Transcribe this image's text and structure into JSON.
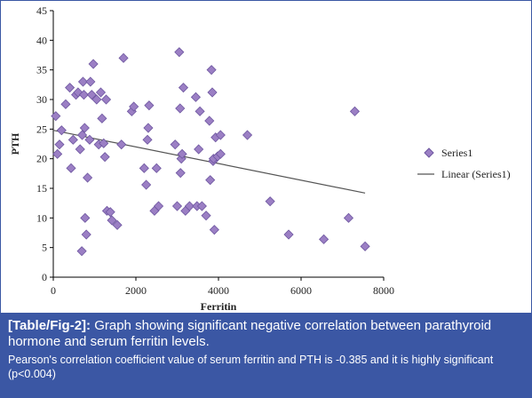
{
  "caption": {
    "tag": "[Table/Fig-2]:",
    "title": " Graph showing significant negative correlation between parathyroid hormone and serum ferritin levels.",
    "body": "Pearson's correlation coefficient value of serum ferritin and PTH is -0.385 and it is highly significant (p<0.004)"
  },
  "chart_data": {
    "type": "scatter",
    "xlabel": "Ferritin",
    "ylabel": "PTH",
    "xlim": [
      0,
      8000
    ],
    "ylim": [
      0,
      45
    ],
    "xticks": [
      0,
      2000,
      4000,
      6000,
      8000
    ],
    "yticks": [
      0,
      5,
      10,
      15,
      20,
      25,
      30,
      35,
      40,
      45
    ],
    "grid": false,
    "legend_position": "right",
    "marker_color": "#9b7fc4",
    "marker_stroke": "#6e57a0",
    "line_color": "#555555",
    "series": [
      {
        "name": "Series1",
        "points": [
          [
            60,
            27.2
          ],
          [
            100,
            20.8
          ],
          [
            150,
            22.4
          ],
          [
            200,
            24.8
          ],
          [
            300,
            29.2
          ],
          [
            400,
            32
          ],
          [
            430,
            18.4
          ],
          [
            480,
            23.2
          ],
          [
            550,
            30.8
          ],
          [
            600,
            31.2
          ],
          [
            650,
            21.6
          ],
          [
            690,
            4.4
          ],
          [
            700,
            24
          ],
          [
            720,
            33
          ],
          [
            740,
            30.8
          ],
          [
            760,
            25.2
          ],
          [
            770,
            10
          ],
          [
            800,
            7.2
          ],
          [
            830,
            16.8
          ],
          [
            880,
            23.2
          ],
          [
            900,
            33
          ],
          [
            930,
            30.8
          ],
          [
            970,
            36
          ],
          [
            1050,
            30
          ],
          [
            1100,
            22.4
          ],
          [
            1150,
            31.2
          ],
          [
            1180,
            26.8
          ],
          [
            1220,
            22.6
          ],
          [
            1250,
            20.3
          ],
          [
            1280,
            30
          ],
          [
            1300,
            11.2
          ],
          [
            1380,
            11
          ],
          [
            1420,
            9.6
          ],
          [
            1550,
            8.8
          ],
          [
            1650,
            22.4
          ],
          [
            1700,
            37
          ],
          [
            1900,
            28
          ],
          [
            1950,
            28.8
          ],
          [
            2200,
            18.4
          ],
          [
            2250,
            15.6
          ],
          [
            2280,
            23.2
          ],
          [
            2300,
            25.2
          ],
          [
            2320,
            29
          ],
          [
            2450,
            11.2
          ],
          [
            2500,
            18.4
          ],
          [
            2550,
            12
          ],
          [
            2950,
            22.4
          ],
          [
            3000,
            12
          ],
          [
            3050,
            38
          ],
          [
            3070,
            28.5
          ],
          [
            3080,
            17.6
          ],
          [
            3100,
            20
          ],
          [
            3120,
            20.8
          ],
          [
            3150,
            32
          ],
          [
            3200,
            11.2
          ],
          [
            3300,
            12
          ],
          [
            3450,
            30.4
          ],
          [
            3480,
            12
          ],
          [
            3520,
            21.6
          ],
          [
            3550,
            28
          ],
          [
            3600,
            12
          ],
          [
            3700,
            10.4
          ],
          [
            3780,
            26.4
          ],
          [
            3800,
            16.4
          ],
          [
            3830,
            35
          ],
          [
            3850,
            31.2
          ],
          [
            3870,
            19.6
          ],
          [
            3880,
            20
          ],
          [
            3900,
            8
          ],
          [
            3930,
            23.6
          ],
          [
            3980,
            20.4
          ],
          [
            4050,
            20.8
          ],
          [
            4050,
            24
          ],
          [
            4700,
            24
          ],
          [
            5250,
            12.8
          ],
          [
            5700,
            7.2
          ],
          [
            6550,
            6.4
          ],
          [
            7150,
            10
          ],
          [
            7300,
            28
          ],
          [
            7550,
            5.2
          ]
        ]
      }
    ],
    "trendline": {
      "name": "Linear (Series1)",
      "x": [
        0,
        7550
      ],
      "y": [
        24.8,
        14.2
      ]
    }
  }
}
